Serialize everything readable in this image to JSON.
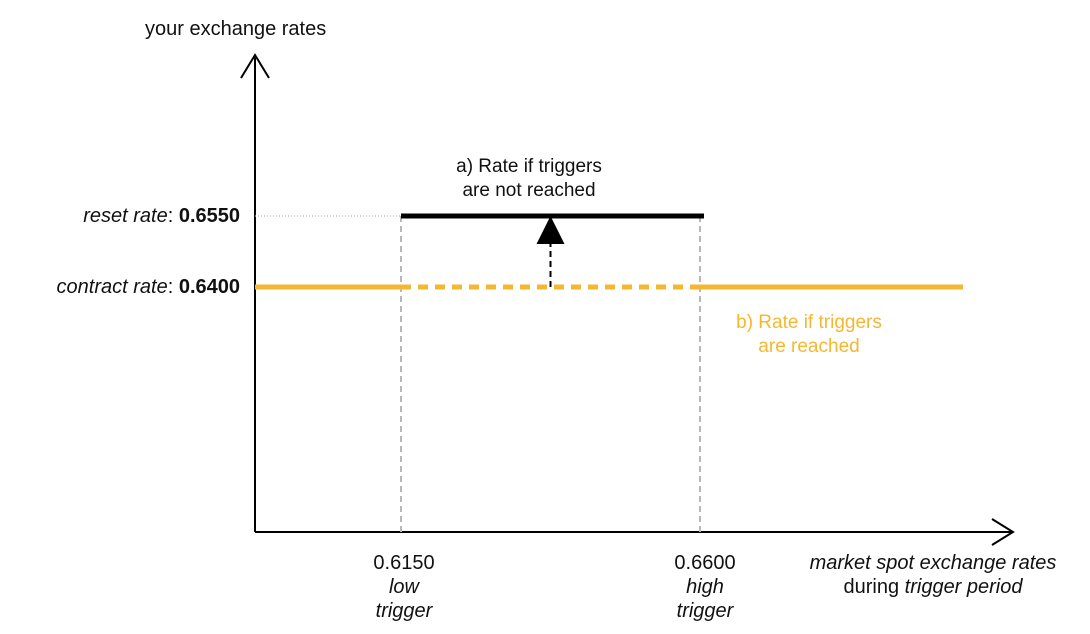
{
  "chart_data": {
    "type": "line",
    "ylabel": "your exchange rates",
    "xlabel_line1": "market spot exchange rates",
    "xlabel_line2_prefix": "during",
    "xlabel_line2_italic": "trigger period",
    "y_markers": [
      {
        "label": "reset rate",
        "separator": ": ",
        "value": "0.6550"
      },
      {
        "label": "contract rate",
        "separator": ": ",
        "value": "0.6400"
      }
    ],
    "x_markers": [
      {
        "value": "0.6150",
        "label_line1": "low",
        "label_line2": "trigger"
      },
      {
        "value": "0.6600",
        "label_line1": "high",
        "label_line2": "trigger"
      }
    ],
    "series": [
      {
        "name": "a) Rate if triggers are not reached",
        "legend_line1": "a) Rate if triggers",
        "legend_line2": "are not reached",
        "color": "#000000",
        "style": "solid",
        "points": [
          [
            0.615,
            0.655
          ],
          [
            0.66,
            0.655
          ]
        ]
      },
      {
        "name": "b) Rate if triggers are reached",
        "legend_line1": "b) Rate if triggers",
        "legend_line2": "are reached",
        "color": "#f5b731",
        "style": "solid-outside-dotted-between-triggers",
        "points": [
          [
            0.595,
            0.64
          ],
          [
            0.615,
            0.64
          ],
          [
            0.66,
            0.64
          ],
          [
            0.699,
            0.64
          ]
        ]
      }
    ],
    "annotations": [
      {
        "type": "arrow",
        "from": [
          0.6375,
          0.64
        ],
        "to": [
          0.6375,
          0.655
        ],
        "style": "dashed"
      }
    ],
    "colors": {
      "axis": "#000000",
      "guide": "#bbbbbb",
      "reset_line": "#000000",
      "contract_line": "#f5b731",
      "legend_b_text": "#f5b731"
    }
  }
}
